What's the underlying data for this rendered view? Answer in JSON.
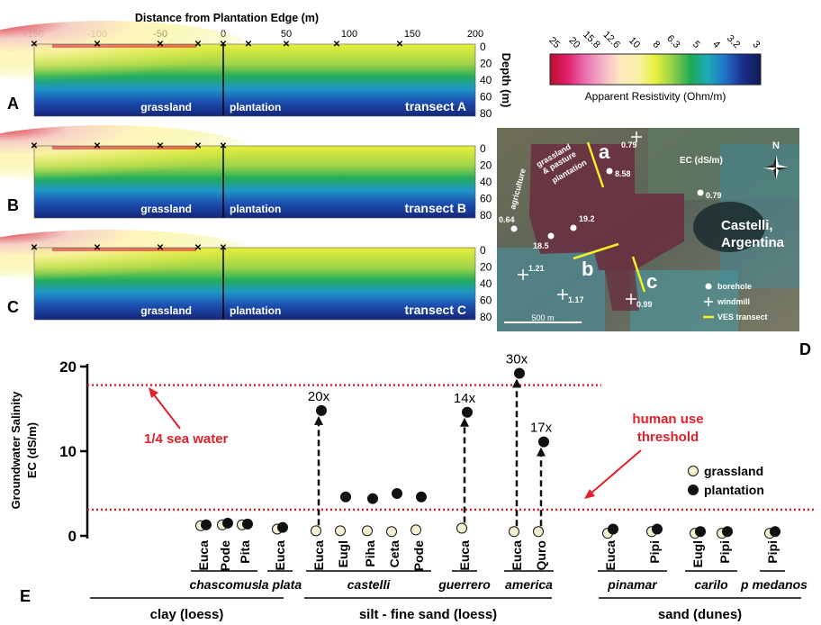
{
  "top_panels": {
    "x_axis_title": "Distance from Plantation Edge (m)",
    "x_ticks": [
      -150,
      -100,
      -50,
      0,
      50,
      100,
      150,
      200
    ],
    "depth_label": "Depth (m)",
    "depth_ticks": [
      0,
      20,
      40,
      60,
      80
    ],
    "label_grassland": "grassland",
    "label_plantation": "plantation",
    "panels": [
      {
        "letter": "A",
        "transect": "transect A"
      },
      {
        "letter": "B",
        "transect": "transect B"
      },
      {
        "letter": "C",
        "transect": "transect C"
      }
    ]
  },
  "colorbar": {
    "ticks": [
      "25",
      "20",
      "15.8",
      "12.6",
      "10",
      "8",
      "6.3",
      "5",
      "4",
      "3.2",
      "3"
    ],
    "label": "Apparent Resistivity (Ohm/m)",
    "colors": [
      "#b8102a",
      "#e0206e",
      "#ec6fb0",
      "#f4b3c8",
      "#ffe9c0",
      "#f7f2a8",
      "#e9ef3c",
      "#8fd04b",
      "#1faa55",
      "#1eaab8",
      "#2070c8",
      "#1a2c8c",
      "#101c52"
    ]
  },
  "map": {
    "letter": "D",
    "place_line1": "Castelli,",
    "place_line2": "Argentina",
    "north": "N",
    "ec_label": "EC (dS/m)",
    "lbl_agriculture": "agriculture",
    "lbl_grassland1": "grassland",
    "lbl_grassland2": "& pasture",
    "lbl_plantation": "plantation",
    "transect_a": "a",
    "transect_b": "b",
    "transect_c": "c",
    "scale": "500 m",
    "legend_borehole": "borehole",
    "legend_windmill": "windmill",
    "legend_ves": "VES transect",
    "values": [
      "0.79",
      "8.58",
      "0.79",
      "0.64",
      "19.2",
      "18.5",
      "1.21",
      "1.17",
      "0.99"
    ]
  },
  "chart_data": {
    "type": "scatter",
    "panel": "E",
    "ylabel_line1": "Groundwater Salinity",
    "ylabel_line2": "EC (dS/m)",
    "ylim": [
      0,
      20
    ],
    "yticks": [
      0,
      10,
      20
    ],
    "categories": [
      "Euca",
      "Pode",
      "Pita",
      "Euca",
      "Euca",
      "Eugl",
      "Piha",
      "Ceta",
      "Pode",
      "Euca",
      "Euca",
      "Quro",
      "Euca",
      "Pipi",
      "Eugl",
      "Pipi",
      "Pipi"
    ],
    "sites": [
      {
        "name": "chascomus",
        "n": 3
      },
      {
        "name": "la plata",
        "n": 1
      },
      {
        "name": "castelli",
        "n": 5
      },
      {
        "name": "guerrero",
        "n": 1
      },
      {
        "name": "america",
        "n": 2
      },
      {
        "name": "pinamar",
        "n": 2
      },
      {
        "name": "carilo",
        "n": 2
      },
      {
        "name": "p medanos",
        "n": 1
      }
    ],
    "soils": [
      {
        "name": "clay (loess)",
        "n": 4
      },
      {
        "name": "silt - fine sand (loess)",
        "n": 8
      },
      {
        "name": "sand (dunes)",
        "n": 5
      }
    ],
    "series": [
      {
        "name": "grassland",
        "color": "#f3f1cf",
        "values": [
          1.2,
          1.3,
          1.3,
          0.8,
          0.6,
          0.6,
          0.6,
          0.5,
          0.7,
          0.9,
          0.5,
          0.5,
          0.3,
          0.5,
          0.3,
          0.3,
          0.3
        ]
      },
      {
        "name": "plantation",
        "color": "#111111",
        "values": [
          1.3,
          1.5,
          1.4,
          1.0,
          14.8,
          4.6,
          4.4,
          5.0,
          4.6,
          14.6,
          19.2,
          11.1,
          0.8,
          0.8,
          0.5,
          0.5,
          0.5
        ]
      }
    ],
    "multipliers": [
      {
        "index": 4,
        "label": "20x"
      },
      {
        "index": 9,
        "label": "14x"
      },
      {
        "index": 10,
        "label": "30x"
      },
      {
        "index": 11,
        "label": "17x"
      }
    ],
    "ref_lines": [
      {
        "value": 17.8,
        "label": "1/4 sea water"
      },
      {
        "value": 3.1,
        "label_line1": "human use",
        "label_line2": "threshold"
      }
    ],
    "ref_color": "#e0202a"
  }
}
